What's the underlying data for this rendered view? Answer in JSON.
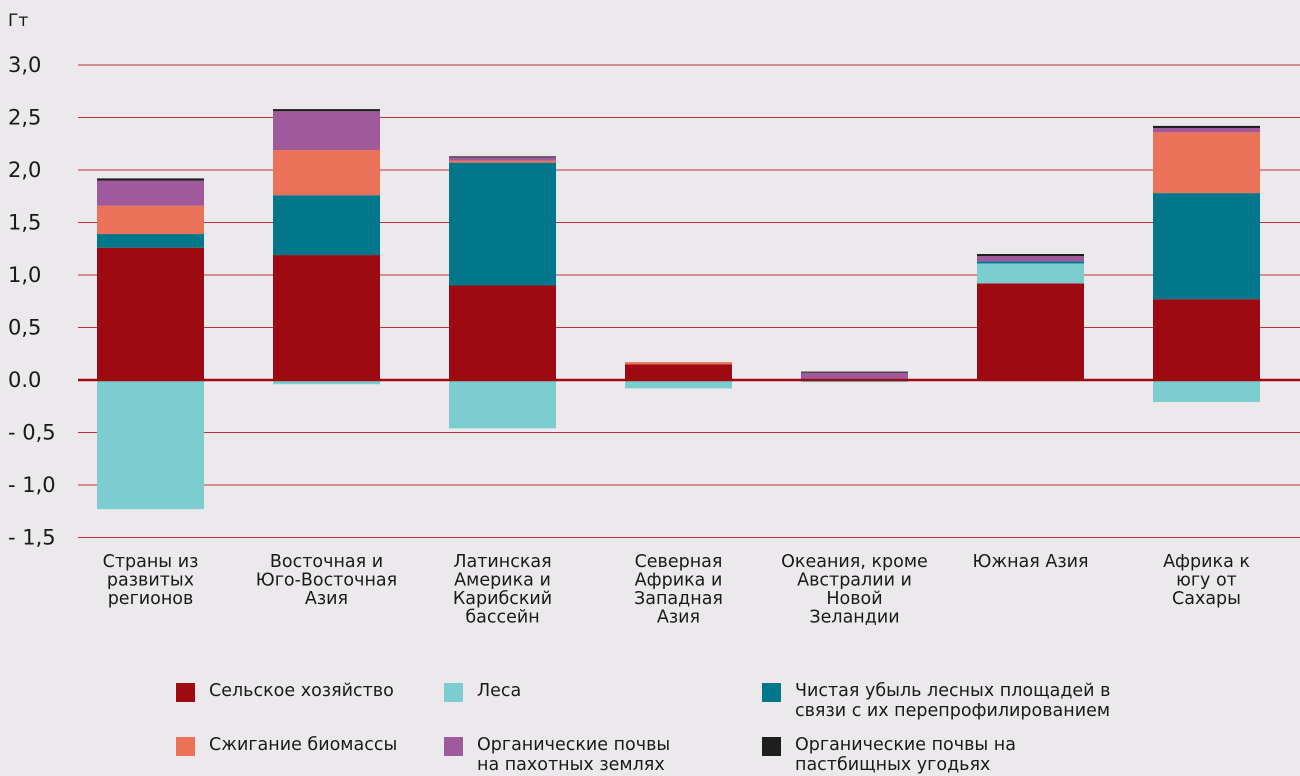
{
  "chart_data": {
    "type": "bar",
    "stacked": true,
    "ylabel": "Гт",
    "ylim": [
      -1.5,
      3.0
    ],
    "yticks": [
      3.0,
      2.5,
      2.0,
      1.5,
      1.0,
      0.5,
      0.0,
      -0.5,
      -1.0,
      -1.5
    ],
    "ytick_labels": [
      "3,0",
      "2,5",
      "2,0",
      "1,5",
      "1,0",
      "0,5",
      "0.0",
      "- 0,5",
      "- 1,0",
      "- 1,5"
    ],
    "grid": true,
    "legend_position": "bottom",
    "categories": [
      "Страны из\nразвитых\nрегионов",
      "Восточная и\nЮго-Восточная\nАзия",
      "Латинская\nАмерика и\nКарибский\nбассейн",
      "Северная\nАфрика и\nЗападная\nАзия",
      "Океания, кроме\nАвстралии и\nНовой\nЗеландии",
      "Южная Азия",
      "Африка к\nюгу от\nСахары"
    ],
    "series": [
      {
        "name": "Сельское хозяйство",
        "color": "#9e0a12",
        "values": [
          1.26,
          1.19,
          0.9,
          0.15,
          0.0,
          0.92,
          0.77
        ]
      },
      {
        "name": "Леса",
        "color": "#7ccdcf",
        "values": [
          -1.23,
          -0.04,
          -0.46,
          -0.08,
          -0.02,
          0.19,
          -0.21
        ]
      },
      {
        "name": "Чистая убыль лесных площадей в\nсвязи с их перепрофилированием",
        "color": "#00778a",
        "values": [
          0.13,
          0.57,
          1.17,
          0.0,
          0.0,
          0.02,
          1.01
        ]
      },
      {
        "name": "Сжигание биомассы",
        "color": "#ea7259",
        "values": [
          0.27,
          0.43,
          0.02,
          0.02,
          0.01,
          0.0,
          0.58
        ]
      },
      {
        "name": "Органические почвы\nна пахотных землях",
        "color": "#a05a9b",
        "values": [
          0.24,
          0.37,
          0.03,
          0.0,
          0.06,
          0.05,
          0.04
        ]
      },
      {
        "name": "Органические почвы на\nпастбищных угодьях",
        "color": "#1e1e1e",
        "values": [
          0.02,
          0.02,
          0.01,
          0.0,
          0.01,
          0.02,
          0.02
        ]
      }
    ]
  }
}
